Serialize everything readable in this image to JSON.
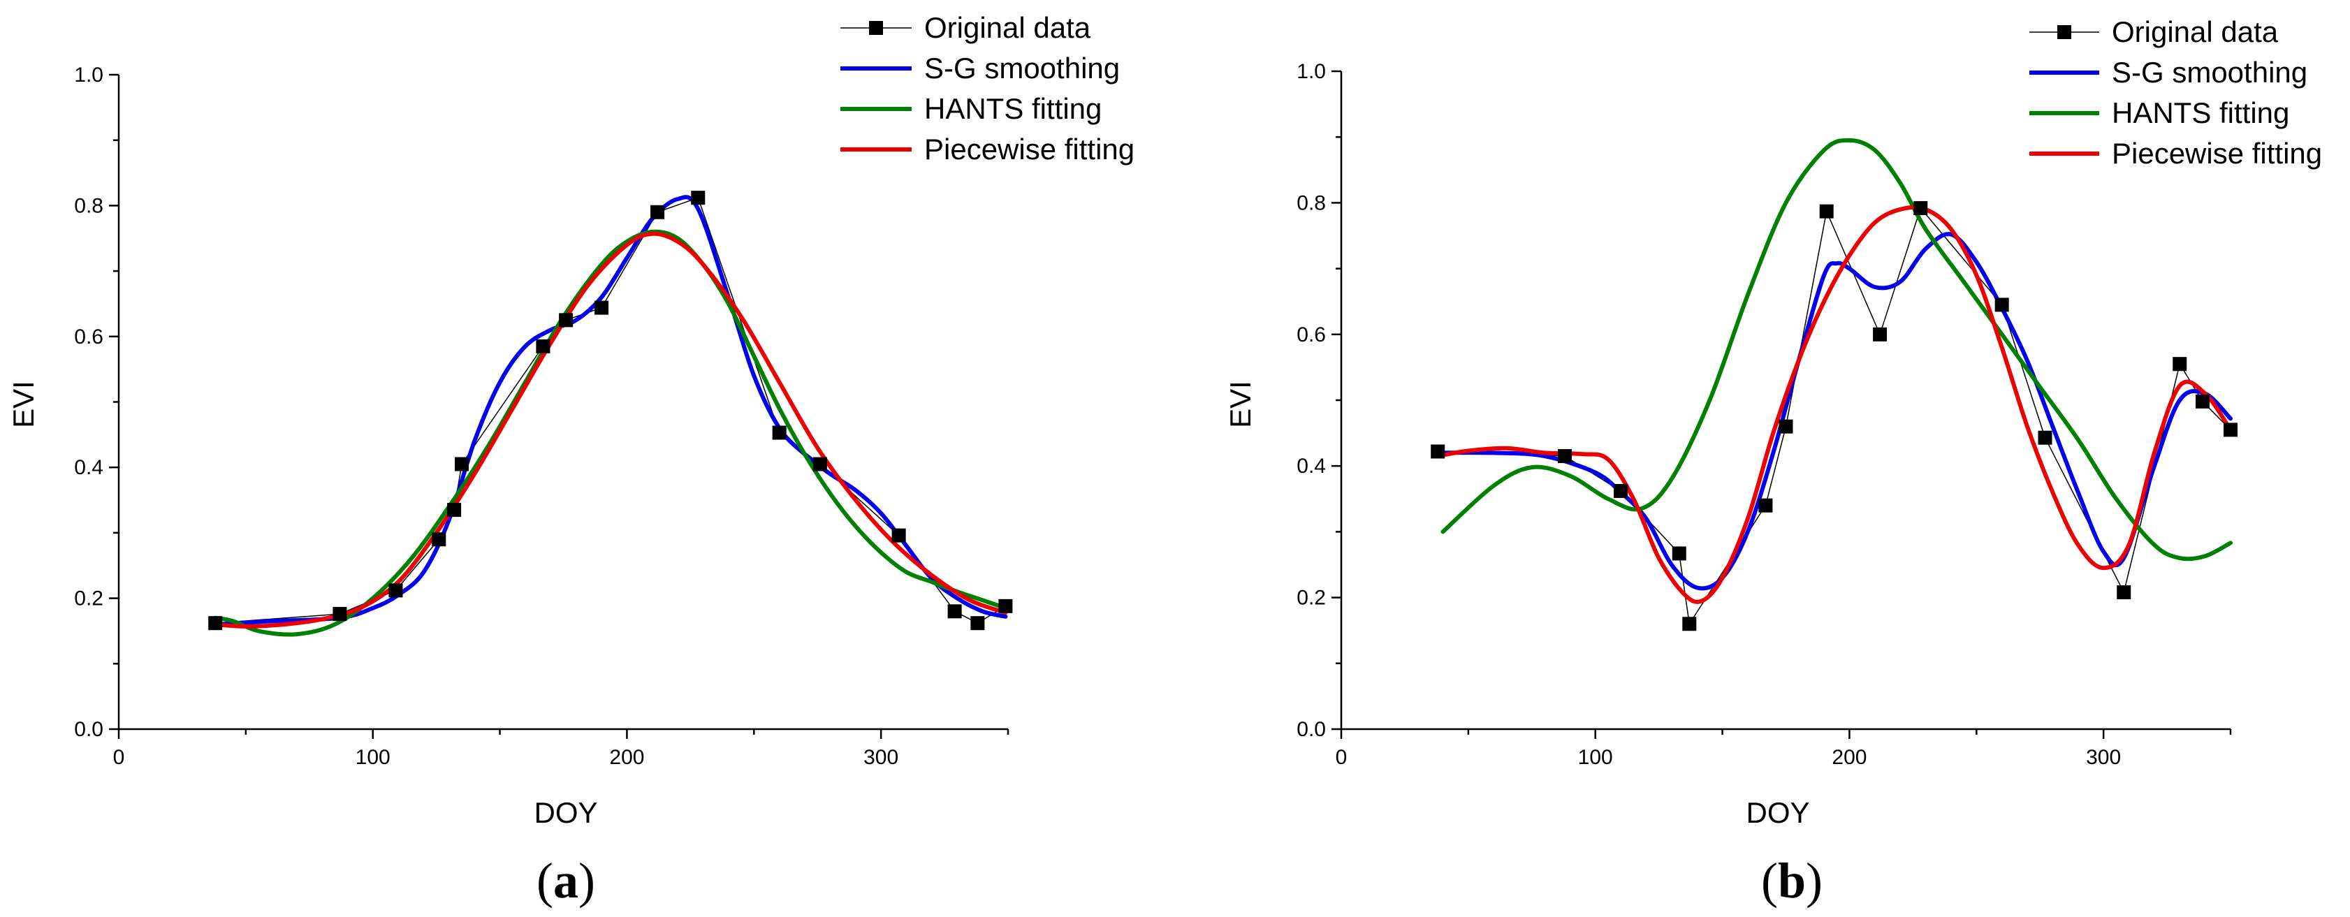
{
  "chart_data": [
    {
      "type": "line",
      "panel_label": "(a)",
      "panel_letter": "a",
      "xlabel": "DOY",
      "ylabel": "EVI",
      "xlim": [
        0,
        350
      ],
      "ylim": [
        0,
        1.0
      ],
      "xticks": [
        0,
        100,
        200,
        300
      ],
      "xtick_labels": [
        "0",
        "100",
        "200",
        "300"
      ],
      "yticks": [
        0.0,
        0.2,
        0.4,
        0.6,
        0.8,
        1.0
      ],
      "ytick_labels": [
        "0.0",
        "0.2",
        "0.4",
        "0.6",
        "0.8",
        "1.0"
      ],
      "grid": false,
      "legend": "top-right",
      "series": [
        {
          "name": "Original data",
          "color": "#000000",
          "marker": "square",
          "x": [
            38,
            87,
            109,
            126,
            132,
            135,
            167,
            176,
            190,
            212,
            228,
            260,
            276,
            307,
            329,
            338,
            349
          ],
          "y": [
            0.162,
            0.176,
            0.212,
            0.29,
            0.335,
            0.405,
            0.585,
            0.625,
            0.644,
            0.79,
            0.812,
            0.453,
            0.405,
            0.296,
            0.18,
            0.162,
            0.188
          ]
        },
        {
          "name": "S-G smoothing",
          "color": "#0000ee",
          "x": [
            38,
            60,
            87,
            100,
            110,
            120,
            130,
            140,
            150,
            160,
            170,
            180,
            190,
            200,
            210,
            220,
            228,
            240,
            250,
            260,
            270,
            280,
            290,
            300,
            310,
            320,
            330,
            340,
            349
          ],
          "y": [
            0.16,
            0.165,
            0.17,
            0.185,
            0.205,
            0.24,
            0.32,
            0.44,
            0.53,
            0.585,
            0.61,
            0.625,
            0.66,
            0.72,
            0.78,
            0.81,
            0.795,
            0.66,
            0.54,
            0.46,
            0.42,
            0.39,
            0.365,
            0.33,
            0.28,
            0.23,
            0.2,
            0.18,
            0.172
          ]
        },
        {
          "name": "HANTS fitting",
          "color": "#008000",
          "x": [
            38,
            45,
            55,
            70,
            85,
            100,
            115,
            130,
            145,
            160,
            175,
            190,
            200,
            210,
            220,
            230,
            240,
            250,
            260,
            270,
            280,
            290,
            300,
            310,
            320,
            330,
            340,
            349
          ],
          "y": [
            0.17,
            0.165,
            0.15,
            0.145,
            0.16,
            0.2,
            0.26,
            0.34,
            0.43,
            0.53,
            0.63,
            0.71,
            0.745,
            0.76,
            0.75,
            0.71,
            0.65,
            0.57,
            0.49,
            0.42,
            0.36,
            0.31,
            0.27,
            0.24,
            0.225,
            0.21,
            0.197,
            0.185
          ]
        },
        {
          "name": "Piecewise fitting",
          "color": "#ee0000",
          "x": [
            38,
            50,
            65,
            80,
            95,
            110,
            125,
            140,
            155,
            170,
            185,
            200,
            210,
            220,
            230,
            245,
            260,
            275,
            290,
            305,
            320,
            335,
            349
          ],
          "y": [
            0.16,
            0.157,
            0.16,
            0.168,
            0.185,
            0.225,
            0.3,
            0.39,
            0.49,
            0.59,
            0.68,
            0.74,
            0.757,
            0.745,
            0.71,
            0.63,
            0.53,
            0.43,
            0.35,
            0.285,
            0.235,
            0.197,
            0.178
          ]
        }
      ]
    },
    {
      "type": "line",
      "panel_label": "(b)",
      "panel_letter": "b",
      "xlabel": "DOY",
      "ylabel": "EVI",
      "xlim": [
        0,
        350
      ],
      "ylim": [
        0,
        1.0
      ],
      "xticks": [
        0,
        100,
        200,
        300
      ],
      "xtick_labels": [
        "0",
        "100",
        "200",
        "300"
      ],
      "yticks": [
        0.0,
        0.2,
        0.4,
        0.6,
        0.8,
        1.0
      ],
      "ytick_labels": [
        "0.0",
        "0.2",
        "0.4",
        "0.6",
        "0.8",
        "1.0"
      ],
      "grid": false,
      "legend": "top-right",
      "series": [
        {
          "name": "Original data",
          "color": "#000000",
          "marker": "square",
          "x": [
            38,
            88,
            110,
            133,
            137,
            167,
            175,
            191,
            212,
            228,
            260,
            277,
            308,
            330,
            339,
            350
          ],
          "y": [
            0.422,
            0.415,
            0.362,
            0.267,
            0.16,
            0.34,
            0.46,
            0.787,
            0.6,
            0.792,
            0.645,
            0.443,
            0.208,
            0.555,
            0.498,
            0.455
          ]
        },
        {
          "name": "S-G smoothing",
          "color": "#0000ee",
          "x": [
            38,
            60,
            80,
            100,
            110,
            120,
            130,
            140,
            150,
            160,
            170,
            180,
            190,
            195,
            200,
            210,
            220,
            230,
            240,
            250,
            260,
            270,
            280,
            290,
            300,
            308,
            320,
            330,
            340,
            350
          ],
          "y": [
            0.42,
            0.42,
            0.415,
            0.39,
            0.36,
            0.32,
            0.25,
            0.215,
            0.23,
            0.3,
            0.42,
            0.56,
            0.69,
            0.708,
            0.7,
            0.672,
            0.68,
            0.73,
            0.752,
            0.71,
            0.64,
            0.56,
            0.46,
            0.36,
            0.27,
            0.26,
            0.4,
            0.5,
            0.51,
            0.472
          ]
        },
        {
          "name": "HANTS fitting",
          "color": "#008000",
          "x": [
            40,
            60,
            75,
            90,
            105,
            118,
            130,
            145,
            160,
            175,
            190,
            200,
            210,
            220,
            230,
            245,
            260,
            275,
            290,
            305,
            320,
            330,
            340,
            350
          ],
          "y": [
            0.3,
            0.37,
            0.398,
            0.385,
            0.35,
            0.335,
            0.38,
            0.5,
            0.66,
            0.8,
            0.88,
            0.895,
            0.88,
            0.83,
            0.76,
            0.68,
            0.6,
            0.52,
            0.44,
            0.35,
            0.28,
            0.26,
            0.263,
            0.283
          ]
        },
        {
          "name": "Piecewise fitting",
          "color": "#ee0000",
          "x": [
            38,
            50,
            65,
            80,
            95,
            105,
            115,
            125,
            135,
            142,
            150,
            160,
            170,
            180,
            190,
            200,
            210,
            220,
            230,
            240,
            250,
            260,
            270,
            280,
            290,
            300,
            310,
            320,
            330,
            340,
            350
          ],
          "y": [
            0.415,
            0.423,
            0.427,
            0.42,
            0.418,
            0.41,
            0.35,
            0.26,
            0.205,
            0.195,
            0.23,
            0.32,
            0.45,
            0.56,
            0.65,
            0.72,
            0.77,
            0.79,
            0.79,
            0.76,
            0.69,
            0.58,
            0.46,
            0.36,
            0.28,
            0.245,
            0.28,
            0.42,
            0.522,
            0.51,
            0.455
          ]
        }
      ]
    }
  ]
}
